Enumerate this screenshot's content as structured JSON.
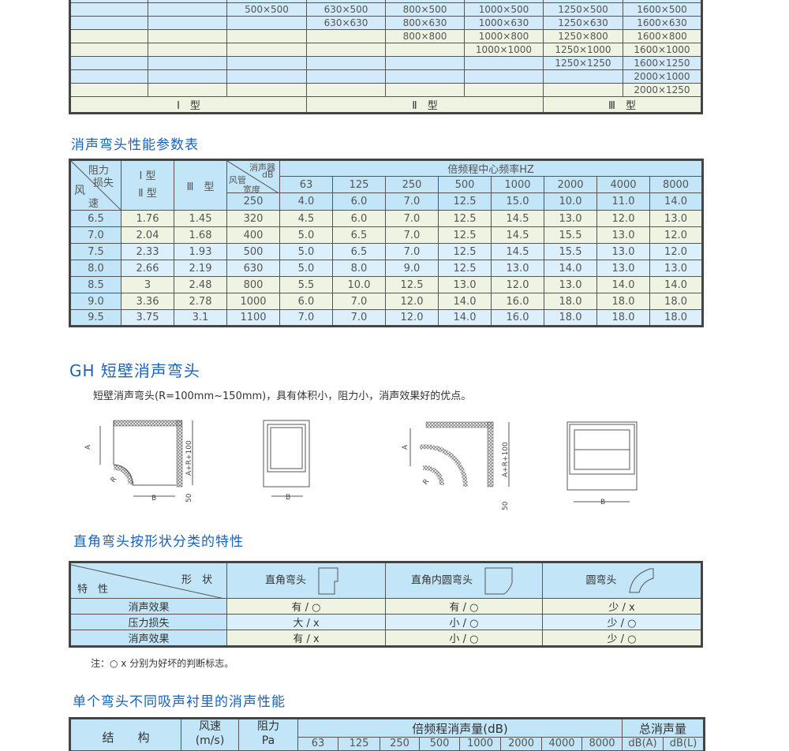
{
  "sizes_table": {
    "rows": [
      [
        "",
        "",
        "500×500",
        "630×500",
        "800×500",
        "1000×500",
        "1250×500",
        "1600×500"
      ],
      [
        "",
        "",
        "",
        "630×630",
        "800×630",
        "1000×630",
        "1250×630",
        "1600×630"
      ],
      [
        "",
        "",
        "",
        "",
        "800×800",
        "1000×800",
        "1250×800",
        "1600×800"
      ],
      [
        "",
        "",
        "",
        "",
        "",
        "1000×1000",
        "1250×1000",
        "1600×1000"
      ],
      [
        "",
        "",
        "",
        "",
        "",
        "",
        "1250×1250",
        "1600×1250"
      ],
      [
        "",
        "",
        "",
        "",
        "",
        "",
        "",
        "2000×1000"
      ],
      [
        "",
        "",
        "",
        "",
        "",
        "",
        "",
        "2000×1250"
      ]
    ],
    "footer": [
      "Ⅰ　型",
      "Ⅱ　型",
      "Ⅲ　型"
    ]
  },
  "perf_title": "消声弯头性能参数表",
  "perf_table": {
    "h_wind": "风",
    "h_speed": "速",
    "h_resist": "阻力",
    "h_loss": "损失",
    "h_type12a": "Ⅰ 型",
    "h_type12b": "Ⅱ 型",
    "h_type3": "Ⅲ　型",
    "h_muffler": "消声器",
    "h_db": "dB",
    "h_duct": "风管",
    "h_width": "宽度",
    "h_freq": "倍频程中心频率HZ",
    "freqs": [
      "63",
      "125",
      "250",
      "500",
      "1000",
      "2000",
      "4000",
      "8000"
    ],
    "first_width": "250",
    "first_values": [
      "4.0",
      "6.0",
      "7.0",
      "12.5",
      "15.0",
      "10.0",
      "11.0",
      "14.0"
    ],
    "rows": [
      [
        "6.5",
        "1.76",
        "1.45",
        "320",
        "4.5",
        "6.0",
        "7.0",
        "12.5",
        "14.5",
        "13.0",
        "12.0",
        "13.0"
      ],
      [
        "7.0",
        "2.04",
        "1.68",
        "400",
        "5.0",
        "6.5",
        "7.0",
        "12.5",
        "14.5",
        "15.5",
        "13.0",
        "12.0"
      ],
      [
        "7.5",
        "2.33",
        "1.93",
        "500",
        "5.0",
        "6.5",
        "7.0",
        "12.5",
        "14.5",
        "15.5",
        "13.0",
        "12.0"
      ],
      [
        "8.0",
        "2.66",
        "2.19",
        "630",
        "5.0",
        "8.0",
        "9.0",
        "12.5",
        "13.0",
        "14.0",
        "13.0",
        "13.0"
      ],
      [
        "8.5",
        "3",
        "2.48",
        "800",
        "5.5",
        "10.0",
        "12.5",
        "13.0",
        "12.0",
        "13.0",
        "14.0",
        "14.0"
      ],
      [
        "9.0",
        "3.36",
        "2.78",
        "1000",
        "6.0",
        "7.0",
        "12.0",
        "14.0",
        "16.0",
        "18.0",
        "18.0",
        "18.0"
      ],
      [
        "9.5",
        "3.75",
        "3.1",
        "1100",
        "7.0",
        "7.0",
        "12.0",
        "14.0",
        "16.0",
        "18.0",
        "18.0",
        "18.0"
      ]
    ]
  },
  "gh": {
    "title": "GH 短壁消声弯头",
    "desc": "短壁消声弯头(R=100mm~150mm)，具有体积小，阻力小，消声效果好的优点。",
    "labels": {
      "a": "A",
      "r": "R",
      "b": "B",
      "arr": "A+R+100",
      "fifty": "50"
    }
  },
  "shape_title": "直角弯头按形状分类的特性",
  "shape_table": {
    "h_shape": "形　状",
    "h_char": "特　性",
    "cols": [
      "直角弯头",
      "直角内圆弯头",
      "圆弯头"
    ],
    "rows": [
      [
        "消声效果",
        "有 / ○",
        "有 / ○",
        "少 / x"
      ],
      [
        "压力损失",
        "大 / x",
        "小 / ○",
        "少 / ○"
      ],
      [
        "消声效果",
        "有 / x",
        "小 / ○",
        "少 / ○"
      ]
    ],
    "note": "注：○ x 分别为好坏的判断标志。"
  },
  "single_title": "单个弯头不同吸声衬里的消声性能",
  "single_table": {
    "h_struct": "结　　构",
    "h_speed": "风速",
    "h_speed_unit": "(m/s)",
    "h_resist": "阻力",
    "h_resist_unit": "Pa",
    "h_octave": "倍频程消声量(dB)",
    "h_total": "总消声量",
    "freqs": [
      "63",
      "125",
      "250",
      "500",
      "1000",
      "2000",
      "4000",
      "8000"
    ],
    "totals": [
      "dB(A)",
      "dB(L)"
    ]
  }
}
